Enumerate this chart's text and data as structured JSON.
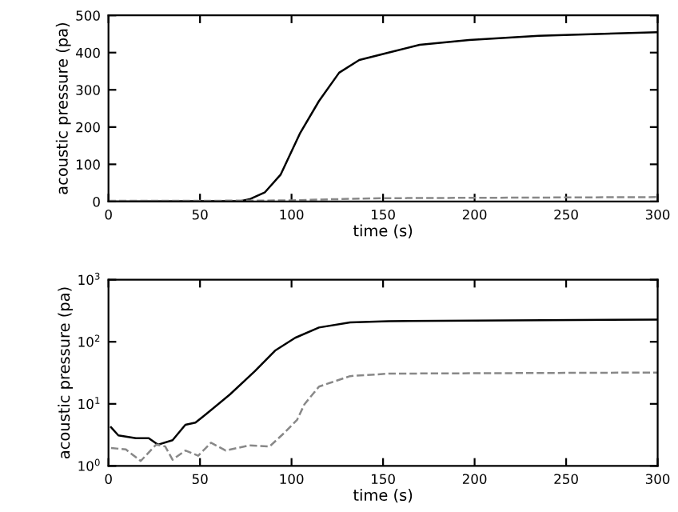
{
  "chart_data": [
    {
      "type": "line",
      "xlabel": "time (s)",
      "ylabel": "acoustic pressure (pa)",
      "xlim": [
        0,
        300
      ],
      "ylim": [
        0,
        500
      ],
      "xticks": [
        0,
        50,
        100,
        150,
        200,
        250,
        300
      ],
      "yticks": [
        0,
        100,
        200,
        300,
        400,
        500
      ],
      "grid": false,
      "legend": false,
      "series": [
        {
          "color": "#000000",
          "line_style": "solid",
          "x": [
            0,
            72,
            77.5,
            85.5,
            94,
            104.5,
            115,
            126,
            137,
            153,
            170,
            197,
            235,
            300
          ],
          "values": [
            0,
            1,
            7,
            25,
            72,
            182,
            270,
            346,
            380,
            400,
            421,
            434,
            445,
            455
          ]
        },
        {
          "color": "#888888",
          "line_style": "dashed",
          "x": [
            0,
            50,
            100,
            120,
            150,
            200,
            250,
            300
          ],
          "values": [
            2,
            2,
            3,
            6,
            9,
            10,
            11,
            12
          ]
        }
      ]
    },
    {
      "type": "line",
      "xlabel": "time (s)",
      "ylabel": "acoustic pressure (pa)",
      "log": "y",
      "xlim": [
        0,
        300
      ],
      "ylim": [
        1,
        1000
      ],
      "xticks": [
        0,
        50,
        100,
        150,
        200,
        250,
        300
      ],
      "yticks": [
        {
          "value": 1,
          "label": "10$^{0}$"
        },
        {
          "value": 10,
          "label": "10$^{1}$"
        },
        {
          "value": 100,
          "label": "10$^{2}$"
        },
        {
          "value": 1000,
          "label": "10$^{3}$"
        }
      ],
      "grid": false,
      "legend": false,
      "series": [
        {
          "color": "#000000",
          "line_style": "solid",
          "x": [
            1.4,
            5.4,
            15,
            22,
            27,
            35,
            42,
            47.5,
            53,
            66.5,
            80,
            91,
            102,
            115,
            132,
            153,
            300
          ],
          "values": [
            4.2,
            3.1,
            2.8,
            2.8,
            2.2,
            2.6,
            4.6,
            5.0,
            6.7,
            14.3,
            33.7,
            72,
            116,
            170,
            206,
            215,
            228
          ]
        },
        {
          "color": "#888888",
          "line_style": "dashed",
          "x": [
            1.4,
            9.5,
            17.6,
            26,
            31,
            35,
            42,
            49,
            56,
            64,
            77,
            88,
            96,
            103,
            107,
            115,
            132,
            153,
            300
          ],
          "values": [
            1.95,
            1.84,
            1.2,
            2.2,
            2.06,
            1.26,
            1.77,
            1.46,
            2.36,
            1.77,
            2.14,
            2.06,
            3.4,
            5.5,
            9.8,
            19,
            28,
            30.7,
            32
          ]
        }
      ]
    }
  ]
}
